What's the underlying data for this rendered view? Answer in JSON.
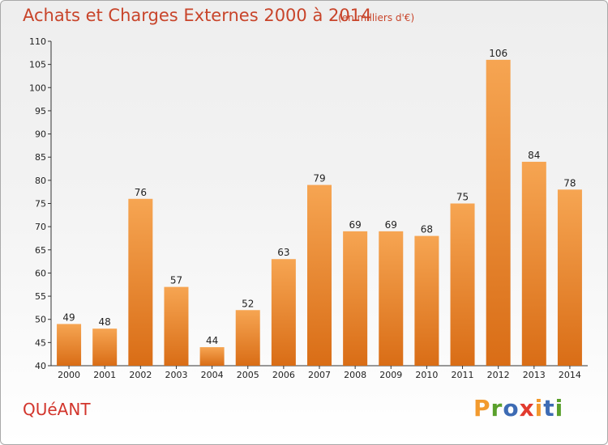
{
  "header": {
    "title": "Achats et Charges Externes 2000 à 2014",
    "subtitle": "(en milliers d'€)"
  },
  "footer": {
    "commune": "QUéANT",
    "logo_text": "Proxiti"
  },
  "colors": {
    "title": "#c8442a",
    "bar_top": "#f6a552",
    "bar_bottom": "#d96d16",
    "logo_letters": [
      "#f29a2e",
      "#5aa02c",
      "#3d6bb4",
      "#e23b2e",
      "#f29a2e",
      "#3d6bb4",
      "#5aa02c"
    ]
  },
  "chart_data": {
    "type": "bar",
    "title": "Achats et Charges Externes 2000 à 2014",
    "subtitle": "(en milliers d'€)",
    "xlabel": "",
    "ylabel": "",
    "categories": [
      "2000",
      "2001",
      "2002",
      "2003",
      "2004",
      "2005",
      "2006",
      "2007",
      "2008",
      "2009",
      "2010",
      "2011",
      "2012",
      "2013",
      "2014"
    ],
    "values": [
      49,
      48,
      76,
      57,
      44,
      52,
      63,
      79,
      69,
      69,
      68,
      75,
      106,
      84,
      78
    ],
    "ylim": [
      40,
      110
    ],
    "yticks": [
      40,
      45,
      50,
      55,
      60,
      65,
      70,
      75,
      80,
      85,
      90,
      95,
      100,
      105,
      110
    ],
    "grid": false,
    "data_labels": true
  }
}
